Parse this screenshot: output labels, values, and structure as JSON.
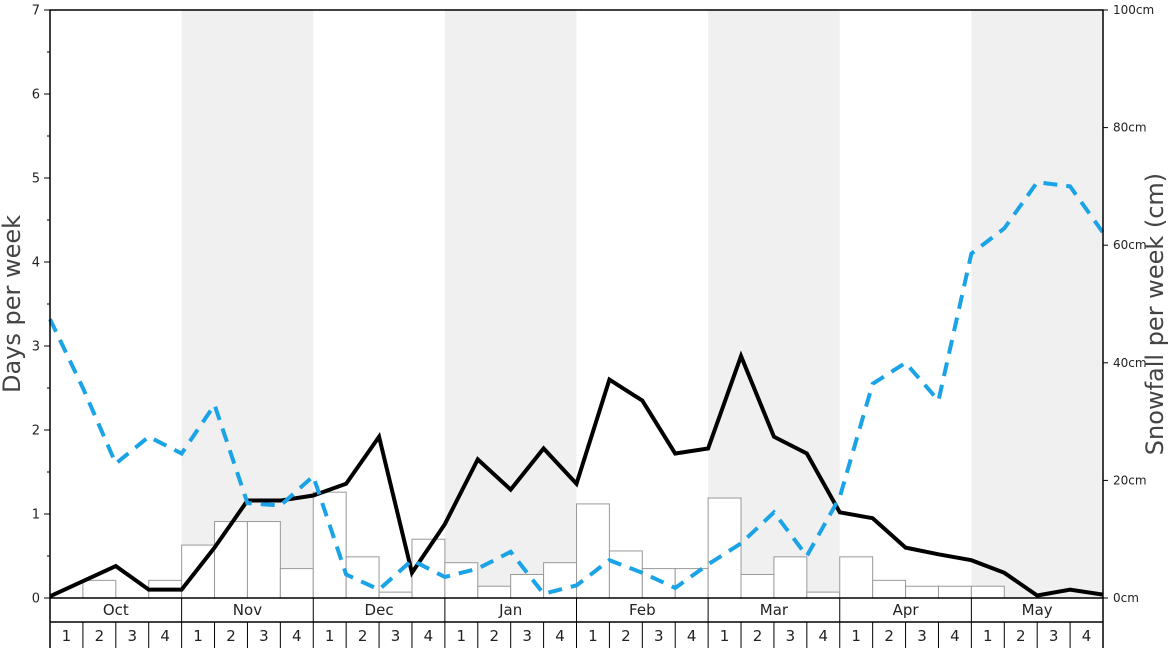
{
  "chart_data": {
    "type": "bar+line",
    "title": "",
    "ylabel_left": "Days per week",
    "ylabel_right": "Snowfall per week (cm)",
    "ylim_left": [
      0,
      7
    ],
    "ylim_right": [
      0,
      100
    ],
    "left_ticks": [
      "0",
      "1",
      "2",
      "3",
      "4",
      "5",
      "6",
      "7"
    ],
    "right_ticks": [
      {
        "value": 0,
        "label": "0cm"
      },
      {
        "value": 20,
        "label": "20cm"
      },
      {
        "value": 40,
        "label": "40cm"
      },
      {
        "value": 60,
        "label": "60cm"
      },
      {
        "value": 80,
        "label": "80cm"
      },
      {
        "value": 100,
        "label": "100cm"
      }
    ],
    "months": [
      "Oct",
      "Nov",
      "Dec",
      "Jan",
      "Feb",
      "Mar",
      "Apr",
      "May"
    ],
    "weeks": [
      "1",
      "2",
      "3",
      "4"
    ],
    "shaded_months": [
      "Nov",
      "Jan",
      "Mar",
      "May"
    ],
    "colors": {
      "snow_days_line": "#000000",
      "other_line": "#1aa3e6",
      "bars_fill": "#ffffff",
      "bars_stroke": "#999999",
      "shade": "#f0f0f0"
    },
    "series": [
      {
        "kind": "bar",
        "axis": "right",
        "values": [
          0,
          3,
          0,
          3,
          9,
          13,
          13,
          5,
          18,
          7,
          1,
          10,
          6,
          2,
          4,
          6,
          16,
          8,
          5,
          5,
          17,
          4,
          7,
          1,
          7,
          3,
          2,
          2,
          2,
          0,
          0,
          0
        ]
      },
      {
        "kind": "line",
        "axis": "left",
        "style": "solid",
        "values": [
          0.02,
          0.2,
          0.38,
          0.1,
          0.1,
          0.6,
          1.16,
          1.16,
          1.22,
          1.36,
          1.92,
          0.3,
          0.88,
          1.65,
          1.29,
          1.78,
          1.36,
          2.6,
          2.35,
          1.72,
          1.78,
          2.88,
          1.92,
          1.72,
          1.02,
          0.95,
          0.6,
          0.52,
          0.45,
          0.3,
          0.03,
          0.1,
          0.04
        ]
      },
      {
        "kind": "line",
        "axis": "left",
        "style": "dashed",
        "values": [
          3.32,
          2.5,
          1.6,
          1.92,
          1.72,
          2.3,
          1.13,
          1.1,
          1.45,
          0.28,
          0.1,
          0.45,
          0.25,
          0.35,
          0.55,
          0.05,
          0.15,
          0.45,
          0.3,
          0.12,
          0.4,
          0.65,
          1.02,
          0.5,
          1.2,
          2.55,
          2.8,
          2.35,
          4.1,
          4.4,
          4.95,
          4.9,
          4.35
        ]
      }
    ]
  }
}
